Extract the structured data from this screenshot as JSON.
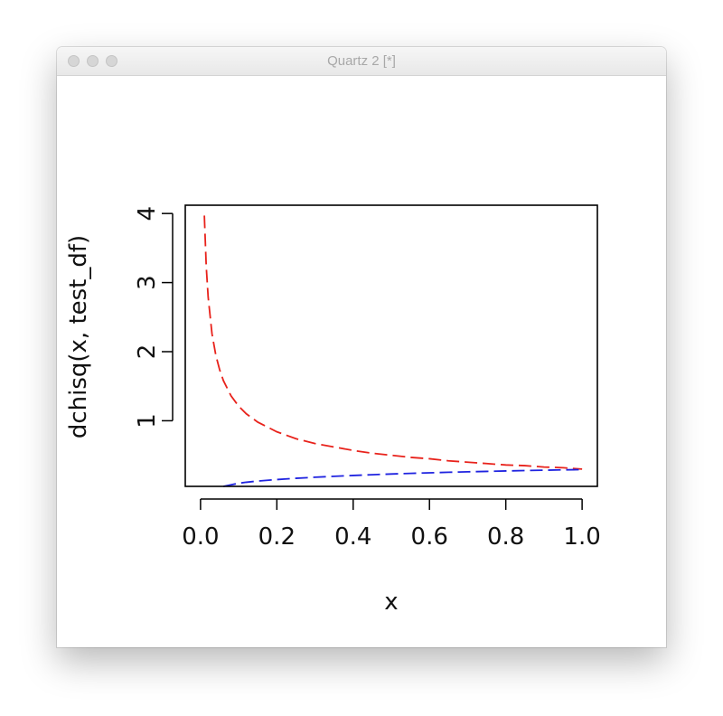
{
  "window": {
    "title": "Quartz 2 [*]",
    "buttons": [
      "close",
      "minimize",
      "zoom"
    ]
  },
  "chart_data": {
    "type": "line",
    "xlabel": "x",
    "ylabel": "dchisq(x, test_df)",
    "xlim": [
      -0.04,
      1.04
    ],
    "ylim": [
      0.05,
      4.12
    ],
    "xticks": [
      0.0,
      0.2,
      0.4,
      0.6,
      0.8,
      1.0
    ],
    "xtick_labels": [
      "0.0",
      "0.2",
      "0.4",
      "0.6",
      "0.8",
      "1.0"
    ],
    "yticks": [
      1,
      2,
      3,
      4
    ],
    "ytick_labels": [
      "1",
      "2",
      "3",
      "4"
    ],
    "grid": false,
    "series": [
      {
        "color": "#e8221b",
        "dash": "dashed",
        "x": [
          0.01,
          0.015,
          0.02,
          0.03,
          0.04,
          0.05,
          0.06,
          0.08,
          0.1,
          0.12,
          0.15,
          0.2,
          0.25,
          0.3,
          0.35,
          0.4,
          0.45,
          0.5,
          0.55,
          0.6,
          0.65,
          0.7,
          0.75,
          0.8,
          0.85,
          0.9,
          0.95,
          1.0
        ],
        "y": [
          3.97,
          3.23,
          2.79,
          2.26,
          1.95,
          1.74,
          1.58,
          1.36,
          1.21,
          1.1,
          0.98,
          0.84,
          0.74,
          0.67,
          0.62,
          0.57,
          0.53,
          0.5,
          0.47,
          0.45,
          0.42,
          0.4,
          0.38,
          0.36,
          0.35,
          0.33,
          0.32,
          0.3
        ]
      },
      {
        "color": "#1f23e0",
        "dash": "dashed",
        "x": [
          0.06,
          0.08,
          0.1,
          0.12,
          0.15,
          0.2,
          0.25,
          0.3,
          0.35,
          0.4,
          0.45,
          0.5,
          0.55,
          0.6,
          0.65,
          0.7,
          0.75,
          0.8,
          0.85,
          0.9,
          0.95,
          1.0
        ],
        "y": [
          0.05,
          0.073,
          0.095,
          0.11,
          0.127,
          0.149,
          0.167,
          0.182,
          0.196,
          0.208,
          0.219,
          0.229,
          0.238,
          0.246,
          0.254,
          0.261,
          0.267,
          0.273,
          0.279,
          0.284,
          0.289,
          0.293
        ]
      }
    ]
  }
}
